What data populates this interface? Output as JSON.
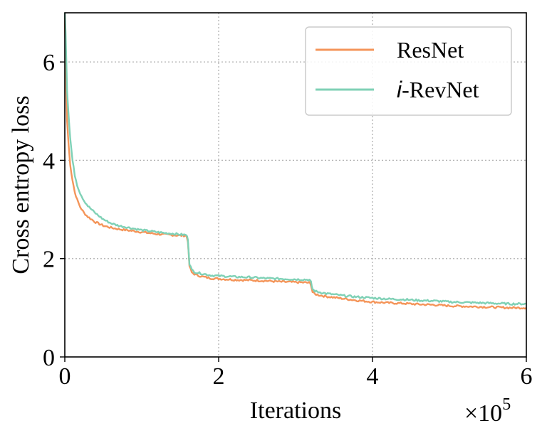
{
  "chart_data": {
    "type": "line",
    "xlabel": "Iterations",
    "ylabel": "Cross entropy loss",
    "x_multiplier": "×10",
    "x_multiplier_exp": "5",
    "xlim": [
      0,
      6
    ],
    "ylim": [
      0,
      7
    ],
    "xticks": [
      0,
      2,
      4,
      6
    ],
    "yticks": [
      0,
      2,
      4,
      6
    ],
    "grid": true,
    "legend_position": "upper-right",
    "series": [
      {
        "name": "ResNet",
        "color": "#f4955a",
        "points": [
          [
            0.0,
            6.9
          ],
          [
            0.01,
            6.2
          ],
          [
            0.02,
            5.4
          ],
          [
            0.03,
            4.8
          ],
          [
            0.05,
            4.3
          ],
          [
            0.07,
            3.9
          ],
          [
            0.1,
            3.6
          ],
          [
            0.13,
            3.35
          ],
          [
            0.16,
            3.2
          ],
          [
            0.2,
            3.05
          ],
          [
            0.25,
            2.93
          ],
          [
            0.3,
            2.85
          ],
          [
            0.4,
            2.74
          ],
          [
            0.5,
            2.67
          ],
          [
            0.6,
            2.63
          ],
          [
            0.7,
            2.6
          ],
          [
            0.8,
            2.58
          ],
          [
            0.9,
            2.56
          ],
          [
            1.0,
            2.54
          ],
          [
            1.1,
            2.52
          ],
          [
            1.2,
            2.5
          ],
          [
            1.3,
            2.49
          ],
          [
            1.4,
            2.48
          ],
          [
            1.5,
            2.47
          ],
          [
            1.58,
            2.47
          ],
          [
            1.6,
            2.35
          ],
          [
            1.62,
            1.85
          ],
          [
            1.65,
            1.72
          ],
          [
            1.7,
            1.67
          ],
          [
            1.8,
            1.63
          ],
          [
            1.9,
            1.6
          ],
          [
            2.0,
            1.59
          ],
          [
            2.2,
            1.57
          ],
          [
            2.4,
            1.56
          ],
          [
            2.6,
            1.55
          ],
          [
            2.8,
            1.53
          ],
          [
            3.0,
            1.52
          ],
          [
            3.18,
            1.51
          ],
          [
            3.2,
            1.47
          ],
          [
            3.22,
            1.32
          ],
          [
            3.25,
            1.28
          ],
          [
            3.3,
            1.26
          ],
          [
            3.4,
            1.23
          ],
          [
            3.6,
            1.19
          ],
          [
            3.8,
            1.15
          ],
          [
            4.0,
            1.12
          ],
          [
            4.2,
            1.1
          ],
          [
            4.4,
            1.09
          ],
          [
            4.6,
            1.07
          ],
          [
            4.8,
            1.06
          ],
          [
            5.0,
            1.04
          ],
          [
            5.2,
            1.03
          ],
          [
            5.4,
            1.02
          ],
          [
            5.6,
            1.01
          ],
          [
            5.8,
            1.0
          ],
          [
            6.0,
            1.0
          ]
        ]
      },
      {
        "name": "i-RevNet",
        "color": "#7fd1b6",
        "points": [
          [
            0.0,
            7.0
          ],
          [
            0.01,
            6.6
          ],
          [
            0.02,
            6.0
          ],
          [
            0.03,
            5.4
          ],
          [
            0.05,
            4.9
          ],
          [
            0.07,
            4.45
          ],
          [
            0.1,
            4.0
          ],
          [
            0.13,
            3.7
          ],
          [
            0.16,
            3.5
          ],
          [
            0.2,
            3.33
          ],
          [
            0.25,
            3.18
          ],
          [
            0.3,
            3.07
          ],
          [
            0.4,
            2.92
          ],
          [
            0.5,
            2.8
          ],
          [
            0.6,
            2.72
          ],
          [
            0.7,
            2.67
          ],
          [
            0.8,
            2.64
          ],
          [
            0.9,
            2.61
          ],
          [
            1.0,
            2.58
          ],
          [
            1.1,
            2.56
          ],
          [
            1.2,
            2.54
          ],
          [
            1.3,
            2.52
          ],
          [
            1.4,
            2.51
          ],
          [
            1.5,
            2.49
          ],
          [
            1.58,
            2.48
          ],
          [
            1.6,
            2.4
          ],
          [
            1.62,
            1.9
          ],
          [
            1.65,
            1.77
          ],
          [
            1.7,
            1.72
          ],
          [
            1.8,
            1.69
          ],
          [
            1.9,
            1.66
          ],
          [
            2.0,
            1.65
          ],
          [
            2.2,
            1.63
          ],
          [
            2.4,
            1.62
          ],
          [
            2.6,
            1.6
          ],
          [
            2.8,
            1.59
          ],
          [
            3.0,
            1.58
          ],
          [
            3.18,
            1.57
          ],
          [
            3.2,
            1.52
          ],
          [
            3.22,
            1.38
          ],
          [
            3.25,
            1.34
          ],
          [
            3.3,
            1.32
          ],
          [
            3.4,
            1.29
          ],
          [
            3.6,
            1.25
          ],
          [
            3.8,
            1.22
          ],
          [
            4.0,
            1.2
          ],
          [
            4.2,
            1.18
          ],
          [
            4.4,
            1.17
          ],
          [
            4.6,
            1.15
          ],
          [
            4.8,
            1.14
          ],
          [
            5.0,
            1.12
          ],
          [
            5.2,
            1.11
          ],
          [
            5.4,
            1.1
          ],
          [
            5.6,
            1.09
          ],
          [
            5.8,
            1.08
          ],
          [
            6.0,
            1.08
          ]
        ]
      }
    ]
  }
}
